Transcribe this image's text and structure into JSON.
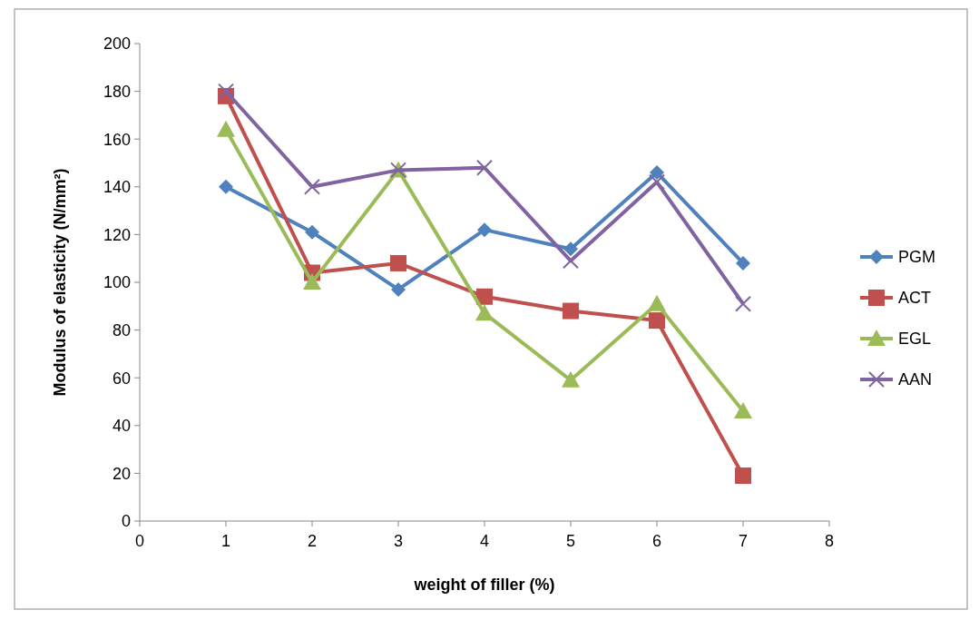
{
  "chart_data": {
    "type": "line",
    "xlabel": "weight of filler (%)",
    "ylabel": "Modulus of elasticity (N/mm²)",
    "x": [
      1,
      2,
      3,
      4,
      5,
      6,
      7
    ],
    "xlim": [
      0,
      8
    ],
    "xticks": [
      0,
      1,
      2,
      3,
      4,
      5,
      6,
      7,
      8
    ],
    "ylim": [
      0,
      200
    ],
    "yticks": [
      0,
      20,
      40,
      60,
      80,
      100,
      120,
      140,
      160,
      180,
      200
    ],
    "grid": false,
    "legend": "right",
    "series": [
      {
        "name": "PGM",
        "color": "#4f81bd",
        "marker": "diamond",
        "values": [
          140,
          121,
          97,
          122,
          114,
          146,
          108
        ]
      },
      {
        "name": "ACT",
        "color": "#c0504d",
        "marker": "square",
        "values": [
          178,
          104,
          108,
          94,
          88,
          84,
          19
        ]
      },
      {
        "name": "EGL",
        "color": "#9bbb59",
        "marker": "triangle",
        "values": [
          164,
          100,
          147,
          87,
          59,
          91,
          46
        ]
      },
      {
        "name": "AAN",
        "color": "#8064a2",
        "marker": "cross",
        "values": [
          180,
          140,
          147,
          148,
          109,
          142,
          91
        ]
      }
    ]
  }
}
